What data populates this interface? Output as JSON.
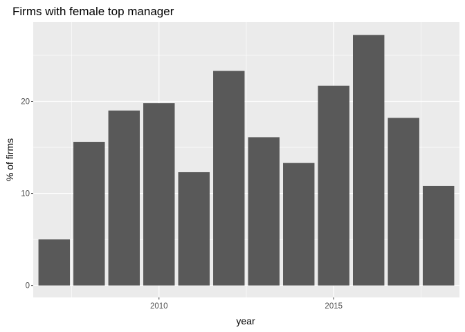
{
  "chart_data": {
    "type": "bar",
    "title": "Firms with female top manager",
    "xlabel": "year",
    "ylabel": "% of firms",
    "categories": [
      2007,
      2008,
      2009,
      2010,
      2011,
      2012,
      2013,
      2014,
      2015,
      2016,
      2017,
      2018
    ],
    "values": [
      5.0,
      15.6,
      19.0,
      19.8,
      12.3,
      23.3,
      16.1,
      13.3,
      21.7,
      27.2,
      18.2,
      10.8
    ],
    "xlim": [
      2006.4,
      2018.6
    ],
    "ylim": [
      -1.3,
      28.6
    ],
    "xticks": [
      2010,
      2015
    ],
    "yticks": [
      0,
      10,
      20
    ],
    "grid": true,
    "panel_background": "#ebebeb",
    "bar_color": "#595959",
    "grid_color": "#ffffff"
  }
}
